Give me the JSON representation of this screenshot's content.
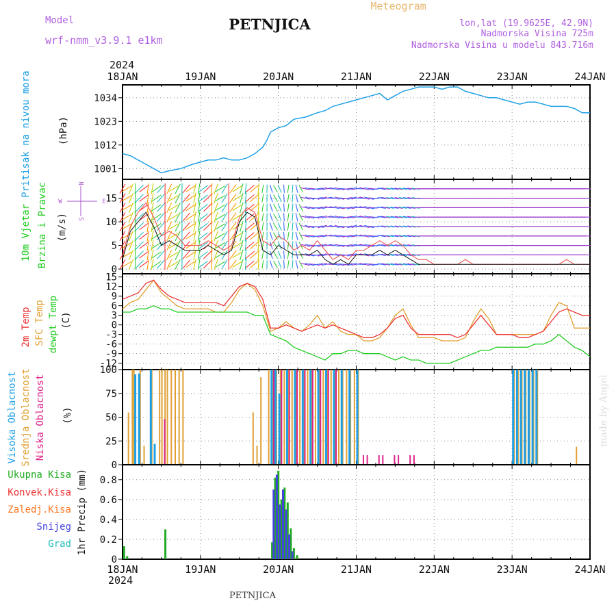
{
  "header": {
    "model_label": "Model",
    "model_name": "wrf-nmm_v3.9.1 e1km",
    "station": "PETNJICA",
    "product": "Meteogram",
    "lonlat": "lon,lat (19.9625E, 42.9N)",
    "elevation": "Nadmorska Visina 725m",
    "model_elevation": "Nadmorska Visina u modelu 843.716m",
    "footer_station": "PETNJICA",
    "watermark": "made by Angel"
  },
  "colors": {
    "pressure": "#1ea0e6",
    "wind_label": "#22cc22",
    "wind_speed": "#111111",
    "wind_gust": "#ee4444",
    "temp2m": "#ee3333",
    "sfc": "#e0a030",
    "dewpt": "#22cc22",
    "high_cloud": "#1ea0e6",
    "mid_cloud": "#e0a030",
    "low_cloud": "#dd2288",
    "total_precip": "#22aa22",
    "conv_precip": "#ee3333",
    "frozen_precip": "#ff7722",
    "snow": "#4444dd",
    "hail": "#22bbbb",
    "compass": "#aa55cc"
  },
  "chart_data": [
    {
      "type": "line",
      "panel": "pressure",
      "ylabel": [
        "Pritisak na nivou mora",
        "(hPa)"
      ],
      "yticks": [
        1001,
        1012,
        1023,
        1034
      ],
      "ylim": [
        996,
        1040
      ],
      "x": [
        0,
        0.1,
        0.25,
        0.4,
        0.5,
        0.6,
        0.75,
        0.9,
        1.0,
        1.1,
        1.2,
        1.3,
        1.4,
        1.5,
        1.6,
        1.7,
        1.8,
        1.85,
        1.9,
        2.0,
        2.1,
        2.2,
        2.35,
        2.5,
        2.6,
        2.7,
        2.8,
        2.9,
        3.0,
        3.1,
        3.2,
        3.3,
        3.4,
        3.5,
        3.6,
        3.7,
        3.8,
        3.9,
        4.0,
        4.1,
        4.2,
        4.3,
        4.4,
        4.5,
        4.6,
        4.7,
        4.8,
        4.9,
        5.0,
        5.1,
        5.2,
        5.3,
        5.4,
        5.5,
        5.6,
        5.7,
        5.8,
        5.9,
        6.0
      ],
      "series": [
        {
          "name": "",
          "values": [
            1008,
            1007,
            1004,
            1001,
            999,
            1000,
            1001,
            1003,
            1004,
            1005,
            1005,
            1006,
            1005,
            1005,
            1006,
            1008,
            1011,
            1014,
            1018,
            1020,
            1021,
            1024,
            1025,
            1027,
            1028,
            1030,
            1031,
            1032,
            1033,
            1034,
            1035,
            1036,
            1033,
            1035,
            1037,
            1038,
            1039,
            1039,
            1039,
            1038,
            1039,
            1039,
            1037,
            1036,
            1035,
            1034,
            1034,
            1033,
            1032,
            1031,
            1032,
            1032,
            1031,
            1030,
            1030,
            1030,
            1029,
            1027,
            1027
          ]
        }
      ]
    },
    {
      "type": "line",
      "panel": "wind",
      "ylabel": [
        "10m Vjetar",
        "Brzina i Pravac",
        "(m/s)"
      ],
      "yticks": [
        0,
        5,
        10,
        15
      ],
      "ylim": [
        -1,
        19
      ],
      "compass": [
        "N",
        "W",
        "E",
        "S"
      ],
      "x": [
        0,
        0.1,
        0.2,
        0.3,
        0.4,
        0.5,
        0.6,
        0.7,
        0.8,
        0.9,
        1.0,
        1.1,
        1.2,
        1.3,
        1.4,
        1.5,
        1.6,
        1.7,
        1.8,
        1.9,
        2.0,
        2.1,
        2.2,
        2.3,
        2.4,
        2.5,
        2.6,
        2.7,
        2.8,
        2.9,
        3.0,
        3.1,
        3.2,
        3.3,
        3.4,
        3.5,
        3.6,
        3.7,
        3.8,
        3.9,
        4.0,
        4.1,
        4.2,
        4.3,
        4.4,
        4.5,
        4.6,
        4.7,
        4.8,
        4.9,
        5.0,
        5.1,
        5.2,
        5.3,
        5.4,
        5.5,
        5.6,
        5.7,
        5.8,
        5.9,
        6.0
      ],
      "series": [
        {
          "name": "",
          "values": [
            2,
            8,
            10,
            12,
            9,
            5,
            6,
            5,
            4,
            4,
            4,
            5,
            4,
            3,
            4,
            10,
            12,
            11,
            4,
            3,
            5,
            4,
            3,
            3,
            3,
            4,
            2,
            1,
            2,
            1,
            3,
            3,
            3,
            4,
            3,
            4,
            3,
            2,
            1,
            1,
            1,
            1,
            1,
            1,
            1,
            1,
            1,
            1,
            1,
            1,
            1,
            1,
            1,
            1,
            1,
            1,
            1,
            1,
            1,
            1,
            1
          ]
        },
        {
          "name": "",
          "values": [
            3,
            9,
            12,
            14,
            11,
            7,
            8,
            7,
            5,
            5,
            5,
            6,
            5,
            4,
            5,
            11,
            13,
            12,
            6,
            5,
            7,
            6,
            4,
            5,
            4,
            6,
            4,
            2,
            3,
            2,
            4,
            4,
            5,
            6,
            5,
            6,
            5,
            3,
            2,
            2,
            1,
            1,
            1,
            1,
            2,
            1,
            1,
            1,
            1,
            1,
            1,
            1,
            1,
            1,
            1,
            1,
            1,
            2,
            1,
            1,
            1
          ]
        }
      ]
    },
    {
      "type": "line",
      "panel": "temperature",
      "ylabel": [
        "2m Temp",
        "SFC Temp",
        "dewpt Temp",
        "(C)"
      ],
      "yticks": [
        -12,
        -9,
        -6,
        -3,
        0,
        3,
        6,
        9,
        12,
        15
      ],
      "ylim": [
        -14,
        16
      ],
      "x": [
        0,
        0.1,
        0.2,
        0.3,
        0.4,
        0.5,
        0.6,
        0.7,
        0.8,
        0.9,
        1.0,
        1.1,
        1.2,
        1.3,
        1.4,
        1.5,
        1.6,
        1.7,
        1.8,
        1.9,
        2.0,
        2.1,
        2.2,
        2.3,
        2.4,
        2.5,
        2.6,
        2.7,
        2.8,
        2.9,
        3.0,
        3.1,
        3.2,
        3.3,
        3.4,
        3.5,
        3.6,
        3.7,
        3.8,
        3.9,
        4.0,
        4.1,
        4.2,
        4.3,
        4.4,
        4.5,
        4.6,
        4.7,
        4.8,
        4.9,
        5.0,
        5.1,
        5.2,
        5.3,
        5.4,
        5.5,
        5.6,
        5.7,
        5.8,
        5.9,
        6.0
      ],
      "series": [
        {
          "name": "2m Temp",
          "values": [
            8,
            9,
            10,
            13,
            14,
            11,
            9,
            8,
            7,
            7,
            7,
            7,
            7,
            6,
            9,
            12,
            13,
            12,
            8,
            -1,
            -1,
            0,
            -1,
            -2,
            -1,
            0,
            -1,
            0,
            -1,
            -2,
            -3,
            -4,
            -4,
            -3,
            -1,
            2,
            3,
            -1,
            -3,
            -3,
            -3,
            -3,
            -3,
            -4,
            -3,
            0,
            3,
            0,
            -3,
            -3,
            -3,
            -4,
            -4,
            -3,
            -2,
            1,
            4,
            5,
            4,
            3,
            3
          ]
        },
        {
          "name": "SFC Temp",
          "values": [
            5,
            7,
            8,
            11,
            14,
            10,
            8,
            6,
            5,
            5,
            5,
            5,
            4,
            4,
            7,
            11,
            13,
            11,
            6,
            -2,
            -1,
            1,
            -1,
            -2,
            0,
            3,
            -1,
            1,
            -2,
            -3,
            -3,
            -5,
            -5,
            -4,
            -1,
            3,
            5,
            0,
            -4,
            -4,
            -4,
            -5,
            -5,
            -5,
            -4,
            1,
            5,
            2,
            -3,
            -3,
            -3,
            -3,
            -3,
            -3,
            -2,
            3,
            7,
            6,
            -1,
            -1,
            -1
          ]
        },
        {
          "name": "dewpt Temp",
          "values": [
            4,
            4,
            5,
            5,
            6,
            5,
            5,
            4,
            4,
            4,
            4,
            4,
            4,
            4,
            4,
            4,
            4,
            3,
            3,
            -3,
            -4,
            -5,
            -7,
            -8,
            -9,
            -10,
            -11,
            -9,
            -9,
            -8,
            -8,
            -9,
            -9,
            -9,
            -10,
            -11,
            -10,
            -11,
            -11,
            -12,
            -12,
            -12,
            -12,
            -11,
            -10,
            -9,
            -8,
            -8,
            -7,
            -7,
            -7,
            -7,
            -7,
            -6,
            -6,
            -5,
            -3,
            -5,
            -7,
            -8,
            -10
          ]
        }
      ]
    },
    {
      "type": "bar",
      "panel": "clouds",
      "ylabel": [
        "Visoka Oblacnost",
        "Srednja Oblacnost",
        "Niska Oblacnost",
        "(%)"
      ],
      "yticks": [
        0,
        25,
        50,
        75,
        100
      ],
      "ylim": [
        0,
        100
      ],
      "series": [
        {
          "name": "Visoka Oblacnost",
          "x": [
            0.15,
            0.2,
            0.35,
            0.4,
            1.7,
            1.75,
            1.8,
            1.9,
            1.95,
            2.0,
            2.1,
            2.2,
            2.3,
            2.4,
            2.5,
            2.6,
            2.7,
            2.8,
            2.9,
            3.0,
            5.0,
            5.05,
            5.1,
            5.15,
            5.2,
            5.25,
            5.3
          ],
          "values": [
            95,
            96,
            100,
            22,
            0,
            0,
            0,
            100,
            100,
            75,
            100,
            100,
            100,
            100,
            100,
            100,
            100,
            100,
            100,
            100,
            100,
            100,
            100,
            100,
            100,
            100,
            100
          ]
        },
        {
          "name": "Srednja Oblacnost",
          "x": [
            0.05,
            0.1,
            0.12,
            0.2,
            0.25,
            0.35,
            0.45,
            0.48,
            0.52,
            0.55,
            0.6,
            0.65,
            0.7,
            0.75,
            1.65,
            1.7,
            1.75,
            1.85,
            1.9,
            1.95,
            2.0,
            2.05,
            2.1,
            2.15,
            2.2,
            2.25,
            2.3,
            2.35,
            2.4,
            2.45,
            2.5,
            2.55,
            2.6,
            2.65,
            2.7,
            2.75,
            2.8,
            2.85,
            2.9,
            2.95,
            3.0,
            5.0,
            5.05,
            5.1,
            5.15,
            5.2,
            5.25,
            5.3,
            5.8
          ],
          "values": [
            55,
            100,
            100,
            100,
            20,
            100,
            100,
            100,
            100,
            100,
            100,
            100,
            100,
            100,
            55,
            20,
            92,
            100,
            100,
            100,
            100,
            100,
            100,
            100,
            100,
            100,
            100,
            100,
            100,
            100,
            100,
            100,
            100,
            100,
            100,
            100,
            100,
            100,
            100,
            100,
            100,
            100,
            100,
            100,
            100,
            100,
            100,
            100,
            19
          ]
        },
        {
          "name": "Niska Oblacnost",
          "x": [
            0.55,
            1.95,
            2.05,
            2.15,
            2.25,
            2.35,
            2.45,
            2.55,
            2.65,
            2.75,
            3.1,
            3.15,
            3.3,
            3.35,
            3.5,
            3.55,
            3.7,
            3.75
          ],
          "values": [
            48,
            100,
            100,
            100,
            100,
            100,
            100,
            100,
            100,
            100,
            10,
            10,
            10,
            10,
            10,
            10,
            10,
            10
          ]
        }
      ]
    },
    {
      "type": "bar",
      "panel": "precipitation",
      "ylabel": [
        "1hr Precip (mm)"
      ],
      "legend": [
        "Ukupna Kisa",
        "Konvek.Kisa",
        "Zaledj.Kisa",
        "Snijeg",
        "Grad"
      ],
      "yticks": [
        0,
        0.2,
        0.4,
        0.6,
        0.8
      ],
      "ylim": [
        0,
        0.95
      ],
      "series": [
        {
          "name": "Ukupna Kisa",
          "x": [
            0.02,
            0.06,
            0.55,
            1.92,
            1.96,
            2.0,
            2.04,
            2.08,
            2.12,
            2.16,
            2.2,
            2.24
          ],
          "values": [
            0.13,
            0.03,
            0.3,
            0.17,
            0.82,
            0.89,
            0.6,
            0.72,
            0.57,
            0.31,
            0.11,
            0.04
          ]
        },
        {
          "name": "Snijeg",
          "x": [
            1.94,
            1.98,
            2.02,
            2.06,
            2.1,
            2.14,
            2.18
          ],
          "values": [
            0.7,
            0.85,
            0.55,
            0.7,
            0.5,
            0.25,
            0.08
          ]
        }
      ]
    }
  ],
  "time_axis": {
    "year": "2024",
    "labels": [
      "18JAN",
      "19JAN",
      "20JAN",
      "21JAN",
      "22JAN",
      "23JAN",
      "24JAN"
    ],
    "days": 6
  }
}
